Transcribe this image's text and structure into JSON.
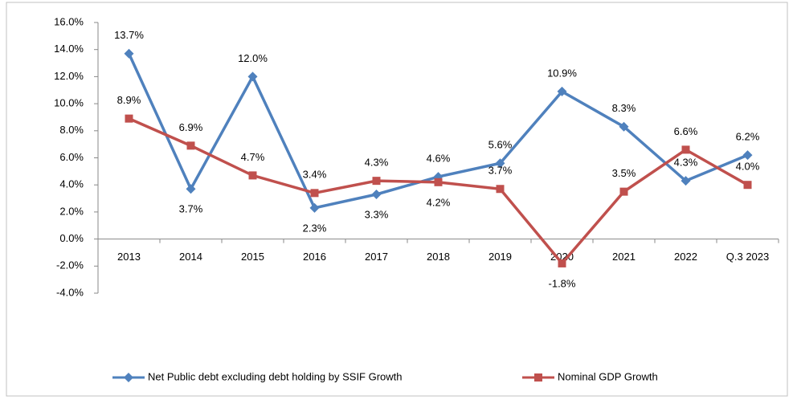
{
  "chart_data": {
    "type": "line",
    "categories": [
      "2013",
      "2014",
      "2015",
      "2016",
      "2017",
      "2018",
      "2019",
      "2020",
      "2021",
      "2022",
      "Q.3 2023"
    ],
    "series": [
      {
        "name": "Net Public debt excluding debt holding by SSIF Growth",
        "color": "#4f81bd",
        "marker": "diamond",
        "values": [
          13.7,
          3.7,
          12.0,
          2.3,
          3.3,
          4.6,
          5.6,
          10.9,
          8.3,
          4.3,
          6.2
        ],
        "value_labels": [
          "13.7%",
          "3.7%",
          "12.0%",
          "2.3%",
          "3.3%",
          "4.6%",
          "5.6%",
          "10.9%",
          "8.3%",
          "4.3%",
          "6.2%"
        ]
      },
      {
        "name": "Nominal GDP Growth",
        "color": "#c0504d",
        "marker": "square",
        "values": [
          8.9,
          6.9,
          4.7,
          3.4,
          4.3,
          4.2,
          3.7,
          -1.8,
          3.5,
          6.6,
          4.0
        ],
        "value_labels": [
          "8.9%",
          "6.9%",
          "4.7%",
          "3.4%",
          "4.3%",
          "4.2%",
          "3.7%",
          "-1.8%",
          "3.5%",
          "6.6%",
          "4.0%"
        ]
      }
    ],
    "ylim": [
      -4,
      16
    ],
    "yticks": [
      {
        "value": -4,
        "label": "-4.0%"
      },
      {
        "value": -2,
        "label": "-2.0%"
      },
      {
        "value": 0,
        "label": "0.0%"
      },
      {
        "value": 2,
        "label": "2.0%"
      },
      {
        "value": 4,
        "label": "4.0%"
      },
      {
        "value": 6,
        "label": "6.0%"
      },
      {
        "value": 8,
        "label": "8.0%"
      },
      {
        "value": 10,
        "label": "10.0%"
      },
      {
        "value": 12,
        "label": "12.0%"
      },
      {
        "value": 14,
        "label": "14.0%"
      },
      {
        "value": 16,
        "label": "16.0%"
      }
    ],
    "grid": false,
    "legend": "bottom"
  }
}
